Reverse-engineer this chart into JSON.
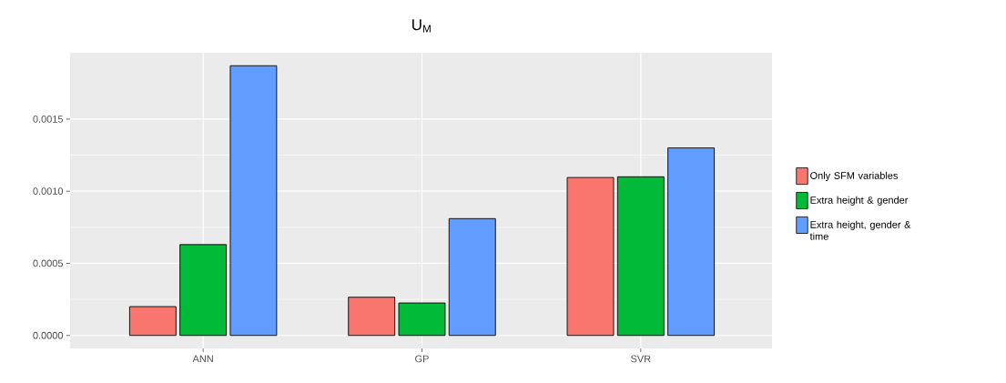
{
  "chart_data": {
    "type": "bar",
    "title": "U$_{M}$",
    "categories": [
      "ANN",
      "GP",
      "SVR"
    ],
    "series": [
      {
        "name": "Only SFM variables",
        "color": "#f8766d",
        "values": [
          0.0002,
          0.000265,
          0.001095
        ]
      },
      {
        "name": "Extra height & gender",
        "color": "#00ba38",
        "values": [
          0.00063,
          0.000225,
          0.0011
        ]
      },
      {
        "name": "Extra height, gender & time",
        "color": "#619cff",
        "values": [
          0.00187,
          0.00081,
          0.0013
        ]
      }
    ],
    "ylim": [
      -9e-05,
      0.00196
    ],
    "yticks": [
      {
        "value": 0,
        "label": "0.0000"
      },
      {
        "value": 0.0005,
        "label": "0.0005"
      },
      {
        "value": 0.001,
        "label": "0.0010"
      },
      {
        "value": 0.0015,
        "label": "0.0015"
      }
    ],
    "grid": true,
    "legend": "right"
  }
}
